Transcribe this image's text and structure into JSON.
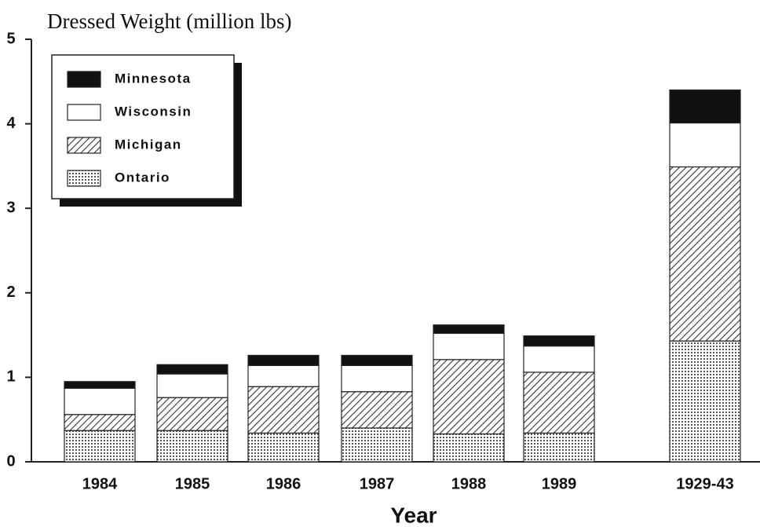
{
  "chart_data": {
    "type": "stacked_bar",
    "title": "Dressed Weight (million lbs)",
    "x_label": "Year",
    "categories": [
      "1984",
      "1985",
      "1986",
      "1987",
      "1988",
      "1989",
      "1929-43"
    ],
    "series": [
      {
        "name": "Minnesota",
        "color": "#111111",
        "pattern": "solid",
        "values": [
          0.08,
          0.11,
          0.12,
          0.12,
          0.1,
          0.12,
          0.39
        ]
      },
      {
        "name": "Wisconsin",
        "color": "#ffffff",
        "pattern": "solid",
        "values": [
          0.31,
          0.28,
          0.25,
          0.31,
          0.31,
          0.31,
          0.52
        ]
      },
      {
        "name": "Michigan",
        "color": "#555555",
        "pattern": "hatch",
        "values": [
          0.19,
          0.39,
          0.55,
          0.43,
          0.88,
          0.72,
          2.06
        ]
      },
      {
        "name": "Ontario",
        "color": "#777777",
        "pattern": "dots",
        "values": [
          0.37,
          0.37,
          0.34,
          0.4,
          0.33,
          0.34,
          1.43
        ]
      }
    ],
    "stack_order": "bottom_to_top_reversed",
    "ylim": [
      0,
      5
    ],
    "yticks": [
      0,
      1,
      2,
      3,
      4,
      5
    ],
    "grid": false,
    "legend": "top-left"
  }
}
